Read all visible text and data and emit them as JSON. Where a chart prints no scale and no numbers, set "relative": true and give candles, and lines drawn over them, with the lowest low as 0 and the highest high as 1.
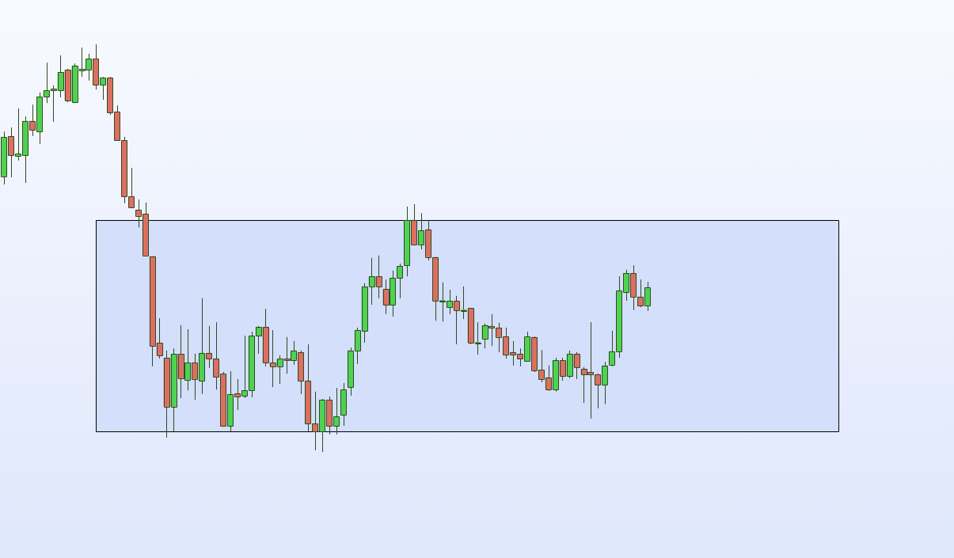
{
  "chart_data": {
    "type": "candlestick",
    "relative": true,
    "categories": [
      null,
      null,
      null,
      null,
      null,
      null,
      null,
      null,
      null,
      null,
      null,
      null,
      null,
      null,
      null,
      null,
      null,
      null,
      null,
      null,
      null,
      null,
      null,
      null,
      null,
      null,
      null,
      null,
      null,
      null,
      null,
      null,
      null,
      null,
      null,
      null,
      null,
      null,
      null,
      null,
      null,
      null,
      null,
      null,
      null,
      null,
      null,
      null,
      null,
      null,
      null,
      null,
      null,
      null,
      null,
      null,
      null,
      null,
      null,
      null,
      null,
      null,
      null,
      null,
      null,
      null,
      null,
      null,
      null,
      null,
      null,
      null,
      null,
      null,
      null,
      null,
      null,
      null,
      null,
      null,
      null,
      null,
      null,
      null,
      null,
      null,
      null,
      null,
      null,
      null,
      null,
      null
    ],
    "ohlc": [
      [
        0.676,
        0.786,
        0.656,
        0.773
      ],
      [
        0.775,
        0.796,
        0.674,
        0.728
      ],
      [
        0.726,
        0.843,
        0.715,
        0.732
      ],
      [
        0.728,
        0.823,
        0.66,
        0.812
      ],
      [
        0.812,
        0.852,
        0.775,
        0.79
      ],
      [
        0.786,
        0.882,
        0.755,
        0.872
      ],
      [
        0.872,
        0.955,
        0.856,
        0.887
      ],
      [
        0.887,
        0.899,
        0.81,
        0.891
      ],
      [
        0.887,
        0.973,
        0.87,
        0.932
      ],
      [
        0.938,
        0.94,
        0.858,
        0.862
      ],
      [
        0.858,
        0.953,
        0.856,
        0.948
      ],
      [
        0.936,
        0.992,
        0.92,
        0.94
      ],
      [
        0.938,
        0.977,
        0.911,
        0.965
      ],
      [
        0.965,
        1,
        0.889,
        0.901
      ],
      [
        0.901,
        0.92,
        0.864,
        0.918
      ],
      [
        0.918,
        0.92,
        0.827,
        0.833
      ],
      [
        0.835,
        0.85,
        0.765,
        0.765
      ],
      [
        0.765,
        0.773,
        0.61,
        0.627
      ],
      [
        0.627,
        0.697,
        0.598,
        0.6
      ],
      [
        0.594,
        0.619,
        0.551,
        0.579
      ],
      [
        0.584,
        0.612,
        0.482,
        0.482
      ],
      [
        0.48,
        0.48,
        0.21,
        0.26
      ],
      [
        0.268,
        0.328,
        0.229,
        0.237
      ],
      [
        0.231,
        0.249,
        0.035,
        0.111
      ],
      [
        0.111,
        0.254,
        0.05,
        0.241
      ],
      [
        0.241,
        0.311,
        0.132,
        0.181
      ],
      [
        0.177,
        0.301,
        0.151,
        0.219
      ],
      [
        0.219,
        0.241,
        0.128,
        0.179
      ],
      [
        0.175,
        0.377,
        0.142,
        0.243
      ],
      [
        0.243,
        0.309,
        0.206,
        0.229
      ],
      [
        0.229,
        0.318,
        0.153,
        0.184
      ],
      [
        0.192,
        0.196,
        0.062,
        0.064
      ],
      [
        0.064,
        0.198,
        0.05,
        0.142
      ],
      [
        0.144,
        0.179,
        0.103,
        0.136
      ],
      [
        0.138,
        0.285,
        0.132,
        0.151
      ],
      [
        0.151,
        0.295,
        0.134,
        0.285
      ],
      [
        0.285,
        0.309,
        0.241,
        0.307
      ],
      [
        0.307,
        0.351,
        0.21,
        0.219
      ],
      [
        0.219,
        0.299,
        0.159,
        0.21
      ],
      [
        0.21,
        0.237,
        0.167,
        0.229
      ],
      [
        0.229,
        0.282,
        0.192,
        0.225
      ],
      [
        0.225,
        0.272,
        0.214,
        0.249
      ],
      [
        0.245,
        0.249,
        0.142,
        0.175
      ],
      [
        0.175,
        0.264,
        0.05,
        0.07
      ],
      [
        0.07,
        0.148,
        0.004,
        0.05
      ],
      [
        0.05,
        0.13,
        0,
        0.128
      ],
      [
        0.128,
        0.136,
        0.043,
        0.064
      ],
      [
        0.064,
        0.157,
        0.043,
        0.087
      ],
      [
        0.091,
        0.169,
        0.064,
        0.153
      ],
      [
        0.159,
        0.256,
        0.138,
        0.249
      ],
      [
        0.249,
        0.305,
        0.216,
        0.299
      ],
      [
        0.297,
        0.414,
        0.268,
        0.406
      ],
      [
        0.406,
        0.476,
        0.361,
        0.431
      ],
      [
        0.431,
        0.482,
        0.377,
        0.406
      ],
      [
        0.4,
        0.423,
        0.338,
        0.361
      ],
      [
        0.361,
        0.445,
        0.332,
        0.427
      ],
      [
        0.427,
        0.462,
        0.377,
        0.456
      ],
      [
        0.458,
        0.602,
        0.431,
        0.569
      ],
      [
        0.569,
        0.608,
        0.507,
        0.509
      ],
      [
        0.509,
        0.586,
        0.497,
        0.544
      ],
      [
        0.546,
        0.569,
        0.47,
        0.478
      ],
      [
        0.478,
        0.478,
        0.322,
        0.371
      ],
      [
        0.371,
        0.416,
        0.32,
        0.371
      ],
      [
        0.355,
        0.398,
        0.338,
        0.371
      ],
      [
        0.371,
        0.383,
        0.264,
        0.348
      ],
      [
        0.348,
        0.406,
        0.326,
        0.348
      ],
      [
        0.353,
        0.353,
        0.264,
        0.268
      ],
      [
        0.268,
        0.318,
        0.239,
        0.268
      ],
      [
        0.278,
        0.315,
        0.254,
        0.311
      ],
      [
        0.309,
        0.338,
        0.26,
        0.305
      ],
      [
        0.305,
        0.317,
        0.245,
        0.282
      ],
      [
        0.283,
        0.305,
        0.229,
        0.239
      ],
      [
        0.245,
        0.272,
        0.212,
        0.239
      ],
      [
        0.241,
        0.254,
        0.21,
        0.229
      ],
      [
        0.223,
        0.295,
        0.223,
        0.283
      ],
      [
        0.282,
        0.283,
        0.196,
        0.2
      ],
      [
        0.202,
        0.25,
        0.171,
        0.179
      ],
      [
        0.183,
        0.212,
        0.15,
        0.153
      ],
      [
        0.153,
        0.231,
        0.148,
        0.225
      ],
      [
        0.225,
        0.231,
        0.175,
        0.186
      ],
      [
        0.186,
        0.249,
        0.181,
        0.241
      ],
      [
        0.241,
        0.245,
        0.179,
        0.208
      ],
      [
        0.204,
        0.208,
        0.12,
        0.19
      ],
      [
        0.196,
        0.318,
        0.082,
        0.19
      ],
      [
        0.19,
        0.192,
        0.107,
        0.165
      ],
      [
        0.165,
        0.221,
        0.117,
        0.212
      ],
      [
        0.214,
        0.297,
        0.21,
        0.247
      ],
      [
        0.247,
        0.431,
        0.231,
        0.396
      ],
      [
        0.392,
        0.447,
        0.371,
        0.439
      ],
      [
        0.439,
        0.458,
        0.348,
        0.381
      ],
      [
        0.381,
        0.423,
        0.355,
        0.359
      ],
      [
        0.359,
        0.417,
        0.346,
        0.404
      ]
    ],
    "colors": [
      "#4fd24f",
      "#dd6f60",
      "#4fd24f",
      "#4fd24f",
      "#dd6f60",
      "#4fd24f",
      "#4fd24f",
      "#4fd24f",
      "#4fd24f",
      "#dd6f60",
      "#4fd24f",
      "#4fd24f",
      "#4fd24f",
      "#dd6f60",
      "#4fd24f",
      "#dd6f60",
      "#dd6f60",
      "#dd6f60",
      "#dd6f60",
      "#dd6f60",
      "#dd6f60",
      "#dd6f60",
      "#dd6f60",
      "#dd6f60",
      "#4fd24f",
      "#dd6f60",
      "#4fd24f",
      "#dd6f60",
      "#4fd24f",
      "#dd6f60",
      "#dd6f60",
      "#dd6f60",
      "#4fd24f",
      "#dd6f60",
      "#4fd24f",
      "#4fd24f",
      "#4fd24f",
      "#dd6f60",
      "#dd6f60",
      "#4fd24f",
      "#dd6f60",
      "#4fd24f",
      "#dd6f60",
      "#dd6f60",
      "#dd6f60",
      "#4fd24f",
      "#dd6f60",
      "#4fd24f",
      "#4fd24f",
      "#4fd24f",
      "#4fd24f",
      "#4fd24f",
      "#4fd24f",
      "#dd6f60",
      "#dd6f60",
      "#4fd24f",
      "#4fd24f",
      "#4fd24f",
      "#dd6f60",
      "#4fd24f",
      "#dd6f60",
      "#dd6f60",
      "#4fd24f",
      "#4fd24f",
      "#dd6f60",
      "#4fd24f",
      "#dd6f60",
      "#4fd24f",
      "#4fd24f",
      "#dd6f60",
      "#dd6f60",
      "#dd6f60",
      "#dd6f60",
      "#dd6f60",
      "#4fd24f",
      "#dd6f60",
      "#dd6f60",
      "#dd6f60",
      "#4fd24f",
      "#dd6f60",
      "#4fd24f",
      "#dd6f60",
      "#dd6f60",
      "#dd6f60",
      "#dd6f60",
      "#4fd24f",
      "#4fd24f",
      "#4fd24f",
      "#4fd24f",
      "#dd6f60",
      "#dd6f60",
      "#4fd24f"
    ],
    "bands": [
      {
        "axis": "y",
        "from": 0.05,
        "to": 0.569,
        "color": "#d3dffb"
      }
    ]
  }
}
